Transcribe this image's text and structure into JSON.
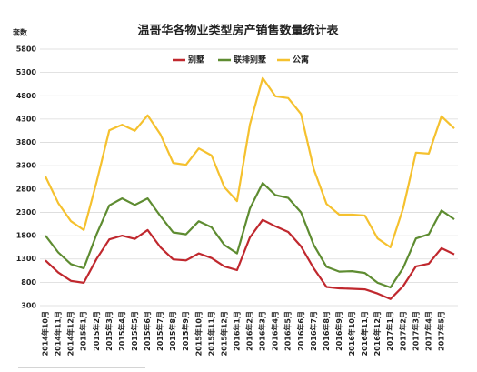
{
  "chart_data": {
    "type": "line",
    "title": "温哥华各物业类型房产销售数量统计表",
    "y_label": "套数",
    "categories": [
      "2014年10月",
      "2014年11月",
      "2014年12月",
      "2015年1月",
      "2015年2月",
      "2015年3月",
      "2015年4月",
      "2015年5月",
      "2015年6月",
      "2015年7月",
      "2015年8月",
      "2015年9月",
      "2015年10月",
      "2015年11月",
      "2015年12月",
      "2016年1月",
      "2016年2月",
      "2016年3月",
      "2016年4月",
      "2016年5月",
      "2016年6月",
      "2016年7月",
      "2016年8月",
      "2016年9月",
      "2016年10月",
      "2016年11月",
      "2016年12月",
      "2017年1月",
      "2017年2月",
      "2017年3月",
      "2017年4月",
      "2017年5月",
      null
    ],
    "series": [
      {
        "name": "别墅",
        "color": "#c0282e",
        "values": [
          1270,
          1010,
          830,
          790,
          1300,
          1720,
          1800,
          1730,
          1920,
          1550,
          1290,
          1270,
          1420,
          1320,
          1140,
          1060,
          1760,
          2140,
          2000,
          1880,
          1570,
          1100,
          700,
          670,
          660,
          650,
          560,
          440,
          720,
          1140,
          1200,
          1530,
          1400
        ]
      },
      {
        "name": "联排别墅",
        "color": "#5e8c31",
        "values": [
          1800,
          1440,
          1190,
          1100,
          1830,
          2450,
          2600,
          2460,
          2600,
          2220,
          1870,
          1830,
          2110,
          1980,
          1600,
          1420,
          2380,
          2930,
          2670,
          2610,
          2300,
          1600,
          1130,
          1030,
          1040,
          1000,
          790,
          690,
          1110,
          1740,
          1830,
          2340,
          2150
        ]
      },
      {
        "name": "公寓",
        "color": "#f5c12e",
        "values": [
          3070,
          2500,
          2110,
          1920,
          2950,
          4060,
          4180,
          4050,
          4380,
          3970,
          3360,
          3320,
          3670,
          3520,
          2840,
          2540,
          4180,
          5180,
          4790,
          4750,
          4410,
          3230,
          2480,
          2250,
          2250,
          2230,
          1740,
          1550,
          2390,
          3580,
          3560,
          4360,
          4100
        ]
      }
    ],
    "ylim": [
      300,
      5800
    ],
    "yticks": [
      300,
      800,
      1300,
      1800,
      2300,
      2800,
      3300,
      3800,
      4300,
      4800,
      5300,
      5800
    ],
    "grid": true,
    "legend": "top"
  }
}
